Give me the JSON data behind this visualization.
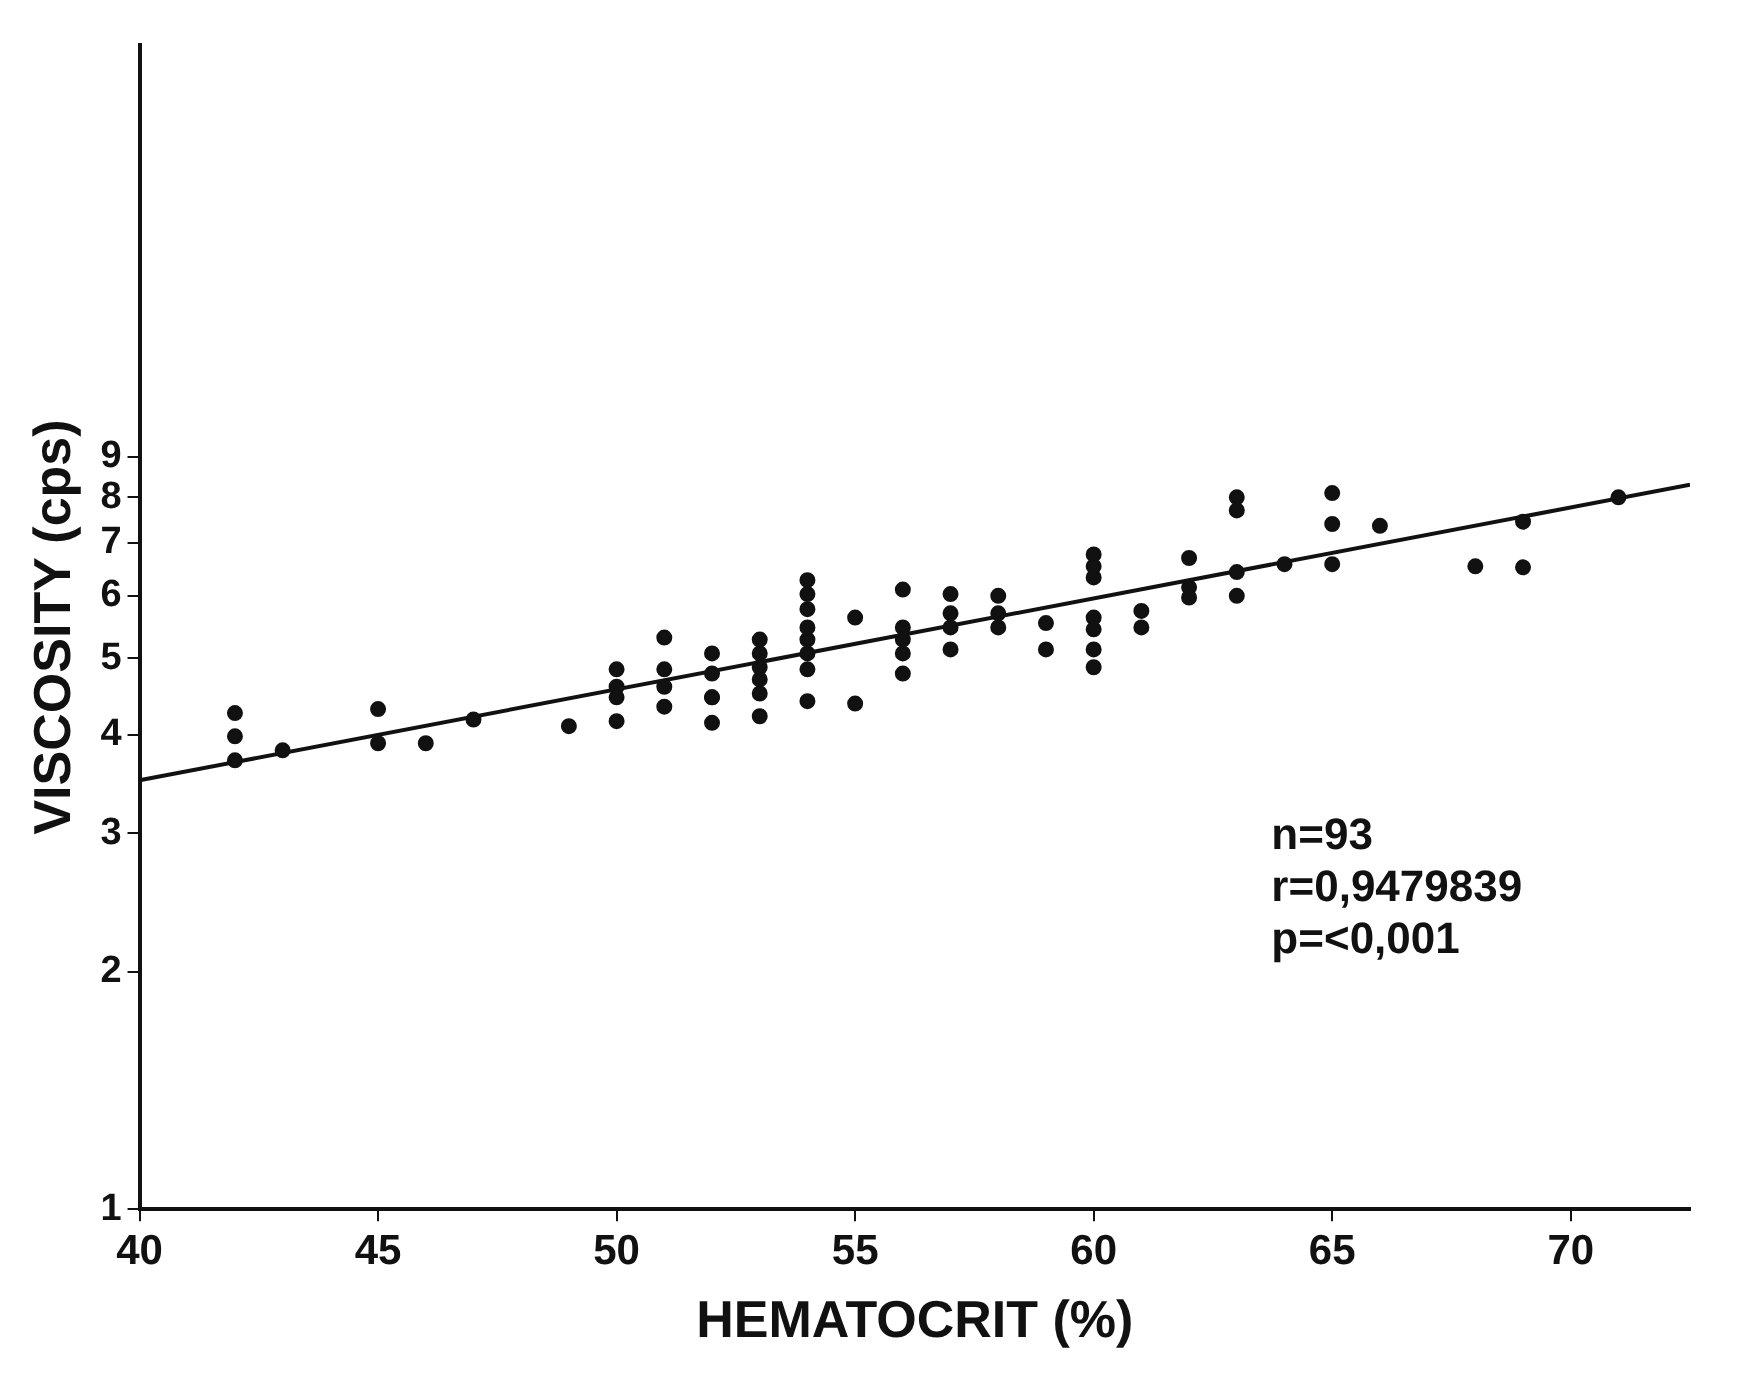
{
  "chart_data": {
    "type": "scatter",
    "xlabel": "HEMATOCRIT (%)",
    "ylabel": "VISCOSITY (cps)",
    "log": "y",
    "xlim": [
      40,
      72.5
    ],
    "ylim": [
      1,
      30
    ],
    "xticks": [
      40,
      45,
      50,
      55,
      60,
      65,
      70
    ],
    "yticks": [
      1,
      2,
      3,
      4,
      5,
      6,
      7,
      8,
      9
    ],
    "legend": false,
    "annotations": [
      "n=93",
      "r=0,9479839",
      "p=<0,001"
    ],
    "series": [
      {
        "color": "#111111",
        "marker": "circle",
        "x": [
          42,
          42,
          42,
          43,
          45,
          45,
          46,
          47,
          49,
          50,
          50,
          50,
          50,
          51,
          51,
          51,
          51,
          52,
          52,
          52,
          52,
          52,
          53,
          53,
          53,
          53,
          53,
          53,
          54,
          54,
          54,
          54,
          54,
          54,
          54,
          54,
          55,
          55,
          56,
          56,
          56,
          56,
          56,
          57,
          57,
          57,
          57,
          58,
          58,
          58,
          59,
          59,
          60,
          60,
          60,
          60,
          60,
          60,
          60,
          61,
          61,
          62,
          62,
          62,
          63,
          63,
          63,
          63,
          64,
          65,
          65,
          65,
          66,
          68,
          69,
          69,
          71
        ],
        "values": [
          4.26,
          3.98,
          3.71,
          3.82,
          4.31,
          3.9,
          3.9,
          4.18,
          4.1,
          4.84,
          4.6,
          4.46,
          4.16,
          5.31,
          4.84,
          4.6,
          4.34,
          5.07,
          4.78,
          4.46,
          4.46,
          4.14,
          5.28,
          5.07,
          4.87,
          4.7,
          4.51,
          4.22,
          6.28,
          6.03,
          5.77,
          5.47,
          5.28,
          5.07,
          4.84,
          4.41,
          5.63,
          4.38,
          6.11,
          5.47,
          5.28,
          5.07,
          4.78,
          6.03,
          5.7,
          5.47,
          5.13,
          6.0,
          5.7,
          5.47,
          5.54,
          5.13,
          6.77,
          6.54,
          6.33,
          5.63,
          5.44,
          5.13,
          4.87,
          5.74,
          5.47,
          6.7,
          6.15,
          5.97,
          8.0,
          7.7,
          6.43,
          6.0,
          6.58,
          8.1,
          7.4,
          6.58,
          7.36,
          6.54,
          7.45,
          6.52,
          8.0
        ]
      },
      {
        "type": "line",
        "color": "#111111",
        "marker": "none",
        "line_style": "solid",
        "x": [
          40,
          72.5
        ],
        "values": [
          3.5,
          8.3
        ]
      }
    ]
  }
}
